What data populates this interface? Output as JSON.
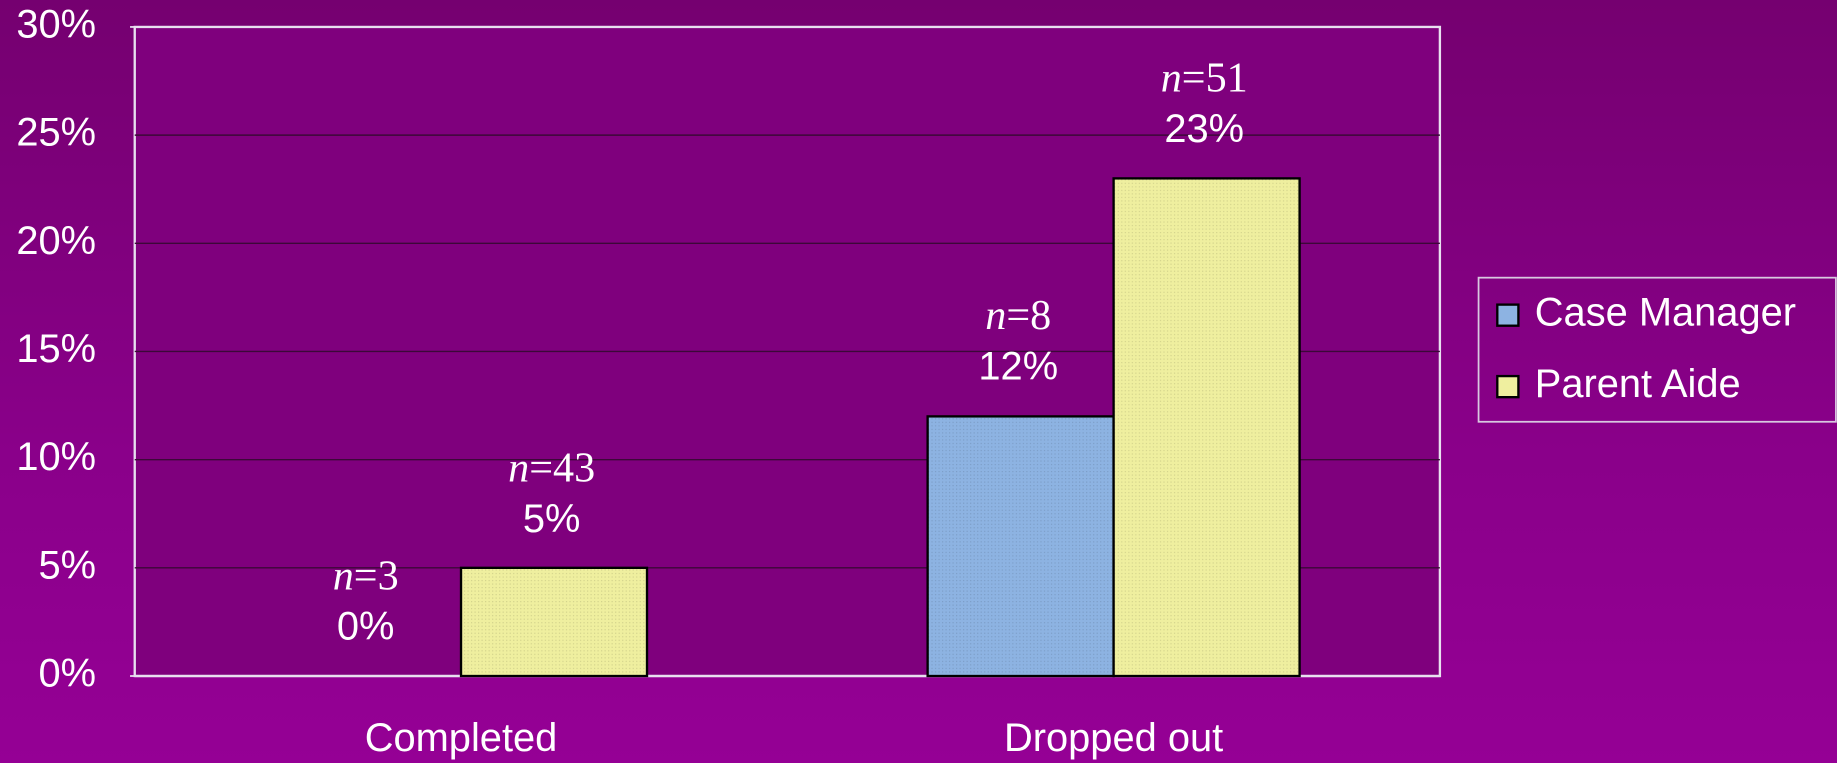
{
  "chart_data": {
    "type": "bar",
    "categories": [
      "Completed",
      "Dropped out"
    ],
    "series": [
      {
        "name": "Case Manager",
        "color": "#8db3e2",
        "values": [
          0,
          12
        ],
        "value_labels": [
          "0%",
          "12%"
        ],
        "n_labels": [
          "n=3",
          "n=8"
        ]
      },
      {
        "name": "Parent Aide",
        "color": "#efef9f",
        "values": [
          5,
          23
        ],
        "value_labels": [
          "5%",
          "23%"
        ],
        "n_labels": [
          "n=43",
          "n=51"
        ]
      }
    ],
    "ylim": [
      0,
      30
    ],
    "yticks": [
      {
        "value": 0,
        "label": "0%"
      },
      {
        "value": 5,
        "label": "5%"
      },
      {
        "value": 10,
        "label": "10%"
      },
      {
        "value": 15,
        "label": "15%"
      },
      {
        "value": 20,
        "label": "20%"
      },
      {
        "value": 25,
        "label": "25%"
      },
      {
        "value": 30,
        "label": "30%"
      }
    ],
    "grid": true,
    "legend": "right"
  }
}
